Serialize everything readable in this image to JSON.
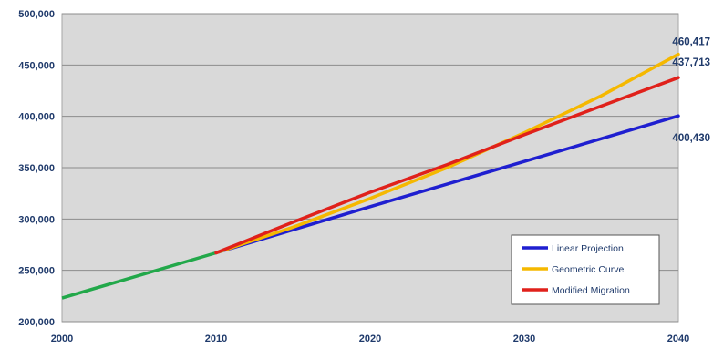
{
  "chart_data": {
    "type": "line",
    "title": "",
    "xlabel": "",
    "ylabel": "",
    "xlim": [
      2000,
      2040
    ],
    "ylim": [
      200000,
      500000
    ],
    "x_ticks": [
      "2000",
      "2010",
      "2020",
      "2030",
      "2040"
    ],
    "y_ticks": [
      "200,000",
      "250,000",
      "300,000",
      "350,000",
      "400,000",
      "450,000",
      "500,000"
    ],
    "grid": "horizontal",
    "plot_background": "#d9d9d9",
    "legend_position": "bottom-right",
    "historical": {
      "color": "#22a84a",
      "points": [
        [
          2000,
          223000
        ],
        [
          2010,
          267000
        ]
      ]
    },
    "series": [
      {
        "name": "Linear Projection",
        "color": "#1f1fd0",
        "points": [
          [
            2010,
            267000
          ],
          [
            2020,
            312000
          ],
          [
            2030,
            356000
          ],
          [
            2040,
            400430
          ]
        ],
        "end_label": "400,430"
      },
      {
        "name": "Geometric Curve",
        "color": "#f5b800",
        "points": [
          [
            2010,
            267000
          ],
          [
            2015,
            292000
          ],
          [
            2020,
            320000
          ],
          [
            2025,
            350000
          ],
          [
            2030,
            384000
          ],
          [
            2035,
            420000
          ],
          [
            2040,
            460417
          ]
        ],
        "end_label": "460,417"
      },
      {
        "name": "Modified Migration",
        "color": "#e0211b",
        "points": [
          [
            2010,
            267000
          ],
          [
            2015,
            297000
          ],
          [
            2020,
            326000
          ],
          [
            2025,
            353000
          ],
          [
            2030,
            382000
          ],
          [
            2035,
            410000
          ],
          [
            2040,
            437713
          ]
        ],
        "end_label": "437,713"
      }
    ]
  }
}
